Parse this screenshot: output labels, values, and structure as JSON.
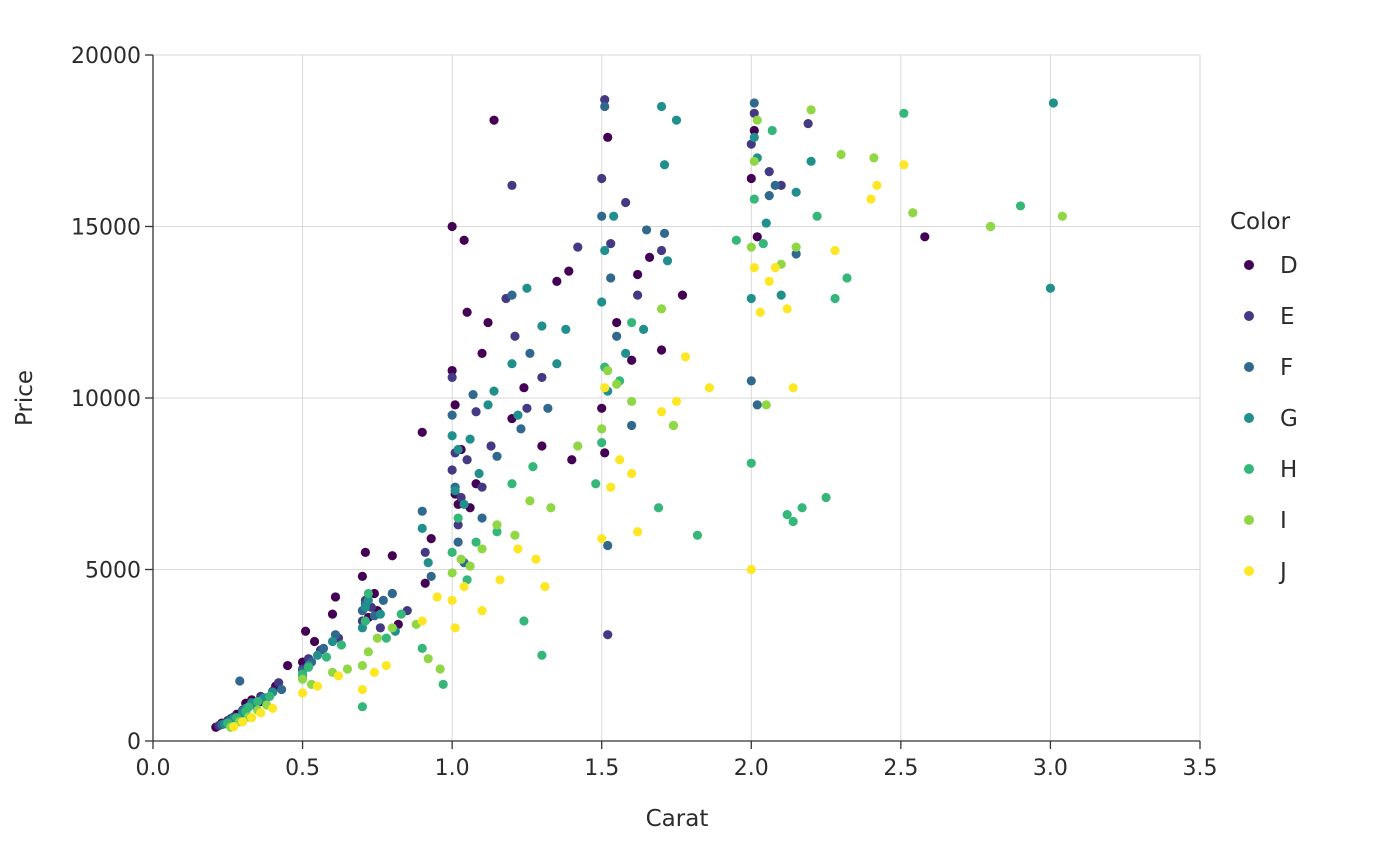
{
  "chart_data": {
    "type": "scatter",
    "title": "",
    "xlabel": "Carat",
    "ylabel": "Price",
    "xlim": [
      0,
      3.5
    ],
    "ylim": [
      0,
      20000
    ],
    "x_ticks": [
      0,
      0.5,
      1,
      1.5,
      2,
      2.5,
      3,
      3.5
    ],
    "x_tick_labels": [
      "0.0",
      "0.5",
      "1.0",
      "1.5",
      "2.0",
      "2.5",
      "3.0",
      "3.5"
    ],
    "y_ticks": [
      0,
      5000,
      10000,
      15000,
      20000
    ],
    "y_tick_labels": [
      "0",
      "5000",
      "10000",
      "15000",
      "20000"
    ],
    "grid": true,
    "legend": {
      "title": "Color",
      "placement": "right"
    },
    "series": [
      {
        "name": "D",
        "color": "#440154",
        "x": [
          0.21,
          0.23,
          0.26,
          0.28,
          0.3,
          0.31,
          0.33,
          0.36,
          0.41,
          0.45,
          0.5,
          0.51,
          0.54,
          0.6,
          0.61,
          0.7,
          0.71,
          0.72,
          0.74,
          0.75,
          0.8,
          0.82,
          0.9,
          0.91,
          0.93,
          1.0,
          1.0,
          1.01,
          1.01,
          1.02,
          1.03,
          1.04,
          1.05,
          1.06,
          1.08,
          1.1,
          1.12,
          1.14,
          1.2,
          1.24,
          1.3,
          1.35,
          1.39,
          1.4,
          1.5,
          1.51,
          1.52,
          1.55,
          1.6,
          1.62,
          1.66,
          1.7,
          1.77,
          2.0,
          2.01,
          2.02,
          2.58
        ],
        "y": [
          400,
          520,
          650,
          780,
          900,
          1100,
          1200,
          1150,
          1600,
          2200,
          2300,
          3200,
          2900,
          3700,
          4200,
          4800,
          5500,
          3600,
          4300,
          3800,
          5400,
          3400,
          9000,
          4600,
          5900,
          15000,
          10800,
          9800,
          7200,
          6900,
          8500,
          14600,
          12500,
          6800,
          7500,
          11300,
          12200,
          18100,
          9400,
          10300,
          8600,
          13400,
          13700,
          8200,
          9700,
          8400,
          17600,
          12200,
          11100,
          13600,
          14100,
          11400,
          13000,
          16400,
          17800,
          14700,
          14700
        ]
      },
      {
        "name": "E",
        "color": "#443a83",
        "x": [
          0.22,
          0.25,
          0.27,
          0.3,
          0.32,
          0.36,
          0.4,
          0.42,
          0.5,
          0.52,
          0.56,
          0.62,
          0.7,
          0.71,
          0.73,
          0.76,
          0.8,
          0.85,
          0.91,
          1.0,
          1.0,
          1.01,
          1.02,
          1.03,
          1.05,
          1.08,
          1.1,
          1.13,
          1.18,
          1.2,
          1.21,
          1.25,
          1.3,
          1.42,
          1.5,
          1.51,
          1.52,
          1.53,
          1.58,
          1.62,
          1.7,
          2.0,
          2.01,
          2.06,
          2.1,
          2.19
        ],
        "y": [
          450,
          600,
          700,
          850,
          1000,
          1300,
          1450,
          1700,
          2100,
          2400,
          2650,
          3000,
          3500,
          4100,
          3900,
          3300,
          4300,
          3800,
          5500,
          10600,
          7900,
          8400,
          6300,
          7100,
          8200,
          9600,
          7400,
          8600,
          12900,
          16200,
          11800,
          9700,
          10600,
          14400,
          16400,
          18700,
          3100,
          14500,
          15700,
          13000,
          14300,
          17400,
          18300,
          16600,
          16200,
          18000
        ]
      },
      {
        "name": "F",
        "color": "#31688e",
        "x": [
          0.23,
          0.26,
          0.29,
          0.3,
          0.34,
          0.38,
          0.43,
          0.5,
          0.53,
          0.57,
          0.61,
          0.7,
          0.71,
          0.74,
          0.77,
          0.8,
          0.9,
          0.93,
          1.0,
          1.01,
          1.02,
          1.04,
          1.07,
          1.1,
          1.15,
          1.2,
          1.23,
          1.26,
          1.32,
          1.5,
          1.51,
          1.52,
          1.53,
          1.55,
          1.6,
          1.65,
          1.71,
          2.0,
          2.01,
          2.02,
          2.06,
          2.08,
          2.15
        ],
        "y": [
          480,
          620,
          1750,
          880,
          1050,
          1260,
          1500,
          2050,
          2300,
          2700,
          3100,
          3800,
          4000,
          3650,
          4100,
          4300,
          6700,
          4800,
          9500,
          7400,
          5800,
          5200,
          10100,
          6500,
          8300,
          13000,
          9100,
          11300,
          9700,
          15300,
          18500,
          5700,
          13500,
          11800,
          9200,
          14900,
          14800,
          10500,
          18600,
          9800,
          15900,
          16200,
          14200
        ]
      },
      {
        "name": "G",
        "color": "#21908d",
        "x": [
          0.24,
          0.27,
          0.3,
          0.31,
          0.33,
          0.37,
          0.4,
          0.5,
          0.52,
          0.55,
          0.6,
          0.7,
          0.71,
          0.72,
          0.76,
          0.81,
          0.9,
          0.92,
          1.0,
          1.01,
          1.02,
          1.04,
          1.06,
          1.09,
          1.12,
          1.14,
          1.2,
          1.22,
          1.25,
          1.3,
          1.35,
          1.38,
          1.5,
          1.51,
          1.52,
          1.54,
          1.58,
          1.64,
          1.7,
          1.71,
          1.72,
          1.75,
          2.0,
          2.01,
          2.02,
          2.05,
          2.1,
          2.15,
          2.2,
          3.0,
          3.01
        ],
        "y": [
          500,
          650,
          820,
          950,
          1120,
          1250,
          1420,
          1900,
          2200,
          2500,
          2900,
          3300,
          3900,
          4100,
          3700,
          3200,
          6200,
          5200,
          8900,
          7300,
          8500,
          6900,
          8800,
          7800,
          9800,
          10200,
          11000,
          9500,
          13200,
          12100,
          11000,
          12000,
          12800,
          14300,
          10200,
          15300,
          11300,
          12000,
          18500,
          16800,
          14000,
          18100,
          12900,
          17600,
          17000,
          15100,
          13000,
          16000,
          16900,
          13200,
          18600
        ]
      },
      {
        "name": "H",
        "color": "#35b779",
        "x": [
          0.25,
          0.28,
          0.31,
          0.32,
          0.35,
          0.39,
          0.5,
          0.52,
          0.58,
          0.63,
          0.7,
          0.71,
          0.72,
          0.78,
          0.83,
          0.9,
          0.97,
          1.0,
          1.02,
          1.05,
          1.08,
          1.15,
          1.2,
          1.24,
          1.27,
          1.3,
          1.48,
          1.5,
          1.51,
          1.56,
          1.6,
          1.69,
          1.82,
          1.95,
          2.0,
          2.01,
          2.04,
          2.07,
          2.12,
          2.14,
          2.17,
          2.22,
          2.25,
          2.28,
          2.32,
          2.51,
          2.8,
          2.9
        ],
        "y": [
          520,
          680,
          850,
          990,
          1150,
          1300,
          1950,
          2150,
          2450,
          2800,
          1000,
          3500,
          4300,
          3000,
          3700,
          2700,
          1650,
          5500,
          6500,
          4700,
          5800,
          6100,
          7500,
          3500,
          8000,
          2500,
          7500,
          8700,
          10900,
          10500,
          12200,
          6800,
          6000,
          14600,
          8100,
          15800,
          14500,
          17800,
          6600,
          6400,
          6800,
          15300,
          7100,
          12900,
          13500,
          18300,
          15000,
          15600
        ]
      },
      {
        "name": "I",
        "color": "#8fd744",
        "x": [
          0.26,
          0.29,
          0.32,
          0.35,
          0.38,
          0.5,
          0.53,
          0.6,
          0.65,
          0.7,
          0.72,
          0.75,
          0.8,
          0.88,
          0.92,
          0.96,
          1.0,
          1.03,
          1.06,
          1.1,
          1.15,
          1.21,
          1.26,
          1.33,
          1.42,
          1.5,
          1.52,
          1.55,
          1.6,
          1.7,
          1.74,
          2.0,
          2.01,
          2.02,
          2.05,
          2.1,
          2.15,
          2.2,
          2.3,
          2.41,
          2.54,
          2.8,
          3.04
        ],
        "y": [
          400,
          560,
          700,
          900,
          1050,
          1800,
          1650,
          2000,
          2100,
          2200,
          2600,
          3000,
          3300,
          3400,
          2400,
          2100,
          4900,
          5300,
          5100,
          5600,
          6300,
          6000,
          7000,
          6800,
          8600,
          9100,
          10800,
          10400,
          9900,
          12600,
          9200,
          14400,
          16900,
          18100,
          9800,
          13900,
          14400,
          18400,
          17100,
          17000,
          15400,
          15000,
          15300
        ]
      },
      {
        "name": "J",
        "color": "#fde725",
        "x": [
          0.27,
          0.3,
          0.33,
          0.36,
          0.4,
          0.5,
          0.55,
          0.62,
          0.7,
          0.74,
          0.78,
          0.9,
          0.95,
          1.0,
          1.01,
          1.04,
          1.1,
          1.16,
          1.22,
          1.28,
          1.31,
          1.5,
          1.51,
          1.53,
          1.56,
          1.6,
          1.62,
          1.7,
          1.75,
          1.78,
          1.86,
          2.0,
          2.01,
          2.03,
          2.06,
          2.08,
          2.12,
          2.14,
          2.28,
          2.4,
          2.42,
          2.51
        ],
        "y": [
          420,
          560,
          680,
          820,
          950,
          1400,
          1600,
          1900,
          1500,
          2000,
          2200,
          3500,
          4200,
          4100,
          3300,
          4500,
          3800,
          4700,
          5600,
          5300,
          4500,
          5900,
          10300,
          7400,
          8200,
          7800,
          6100,
          9600,
          9900,
          11200,
          10300,
          5000,
          13800,
          12500,
          13400,
          13800,
          12600,
          10300,
          14300,
          15800,
          16200,
          16800
        ]
      }
    ]
  }
}
